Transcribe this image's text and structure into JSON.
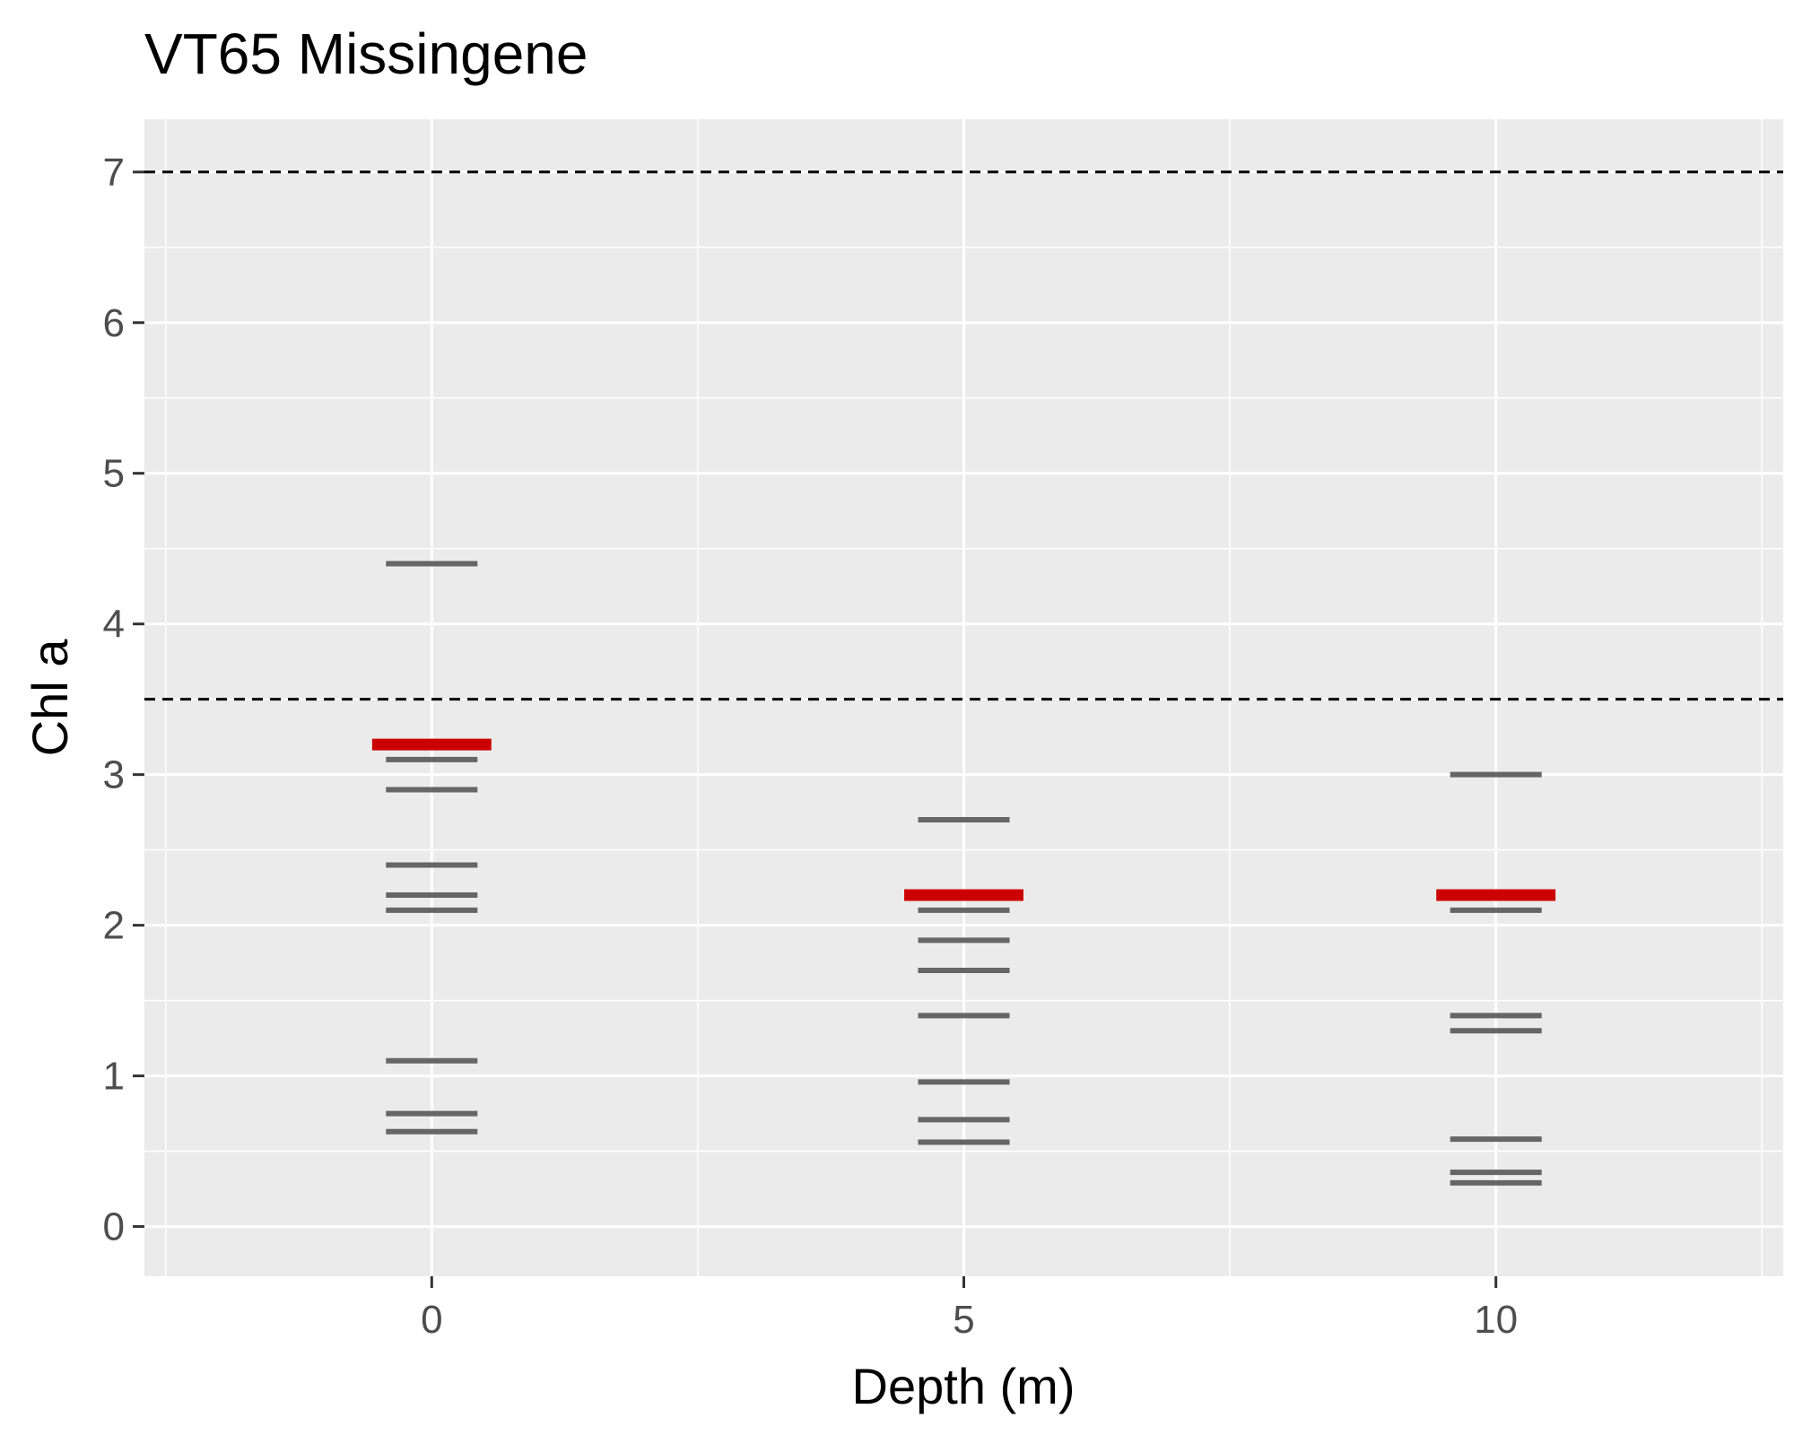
{
  "chart_data": {
    "type": "scatter",
    "title": "VT65 Missingene",
    "xlabel": "Depth (m)",
    "ylabel": "Chl a",
    "xlim": [
      -2.7,
      12.7
    ],
    "ylim": [
      -0.33,
      7.35
    ],
    "x_ticks": [
      0,
      5,
      10
    ],
    "y_ticks": [
      0,
      1,
      2,
      3,
      4,
      5,
      6,
      7
    ],
    "grid": true,
    "reference_lines": [
      3.5,
      7
    ],
    "series": [
      {
        "values": [
          {
            "x": 0,
            "y": 4.4
          },
          {
            "x": 0,
            "y": 3.1
          },
          {
            "x": 0,
            "y": 2.9
          },
          {
            "x": 0,
            "y": 2.4
          },
          {
            "x": 0,
            "y": 2.2
          },
          {
            "x": 0,
            "y": 2.1
          },
          {
            "x": 0,
            "y": 1.1
          },
          {
            "x": 0,
            "y": 0.75
          },
          {
            "x": 0,
            "y": 0.63
          },
          {
            "x": 5,
            "y": 2.7
          },
          {
            "x": 5,
            "y": 2.1
          },
          {
            "x": 5,
            "y": 1.9
          },
          {
            "x": 5,
            "y": 1.7
          },
          {
            "x": 5,
            "y": 1.4
          },
          {
            "x": 5,
            "y": 0.96
          },
          {
            "x": 5,
            "y": 0.71
          },
          {
            "x": 5,
            "y": 0.56
          },
          {
            "x": 10,
            "y": 3.0
          },
          {
            "x": 10,
            "y": 2.1
          },
          {
            "x": 10,
            "y": 1.4
          },
          {
            "x": 10,
            "y": 1.3
          },
          {
            "x": 10,
            "y": 0.58
          },
          {
            "x": 10,
            "y": 0.36
          },
          {
            "x": 10,
            "y": 0.29
          }
        ]
      },
      {
        "values": [
          {
            "x": 0,
            "y": 3.2
          },
          {
            "x": 5,
            "y": 2.2
          },
          {
            "x": 10,
            "y": 2.2
          }
        ]
      }
    ],
    "colors": {
      "panel": "#EBEBEB",
      "grid": "#FFFFFF",
      "observation": "#666666",
      "summary": "#CC0000",
      "reference": "#000000",
      "tick": "#333333"
    }
  }
}
